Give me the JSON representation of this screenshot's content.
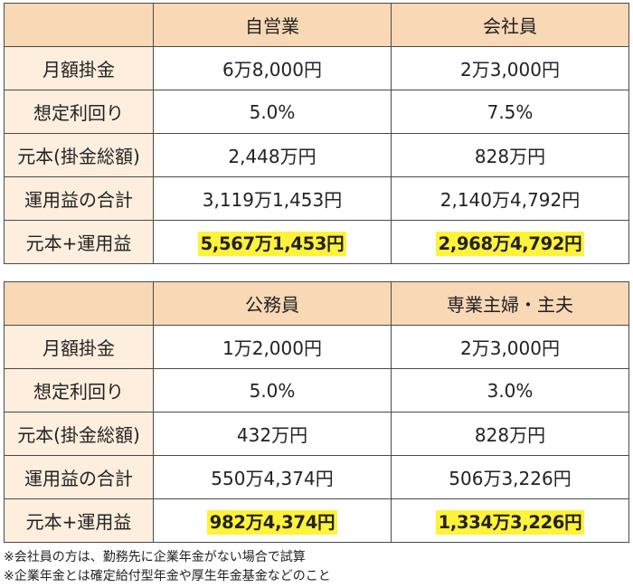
{
  "tables": [
    {
      "headers": [
        "",
        "自営業",
        "会社員"
      ],
      "rows": [
        {
          "label": "月額掛金",
          "values": [
            "6万8,000円",
            "2万3,000円"
          ]
        },
        {
          "label": "想定利回り",
          "values": [
            "5.0%",
            "7.5%"
          ]
        },
        {
          "label": "元本(掛金総額)",
          "values": [
            "2,448万円",
            "828万円"
          ]
        },
        {
          "label": "運用益の合計",
          "values": [
            "3,119万1,453円",
            "2,140万4,792円"
          ]
        },
        {
          "label": "元本+運用益",
          "values": [
            "5,567万1,453円",
            "2,968万4,792円"
          ]
        }
      ]
    },
    {
      "headers": [
        "",
        "公務員",
        "専業主婦・主夫"
      ],
      "rows": [
        {
          "label": "月額掛金",
          "values": [
            "1万2,000円",
            "2万3,000円"
          ]
        },
        {
          "label": "想定利回り",
          "values": [
            "5.0%",
            "3.0%"
          ]
        },
        {
          "label": "元本(掛金総額)",
          "values": [
            "432万円",
            "828万円"
          ]
        },
        {
          "label": "運用益の合計",
          "values": [
            "550万4,374円",
            "506万3,226円"
          ]
        },
        {
          "label": "元本+運用益",
          "values": [
            "982万4,374円",
            "1,334万3,226円"
          ]
        }
      ]
    }
  ],
  "notes": [
    "※会社員の方は、勤務先に企業年金がない場合で試算",
    "※企業年金とは確定給付型年金や厚生年金基金などのこと"
  ],
  "colors": {
    "header_bg": "#f9d8b5",
    "label_bg": "#fdeedd",
    "highlight": "#fff23a",
    "border": "#4a4a4a"
  }
}
